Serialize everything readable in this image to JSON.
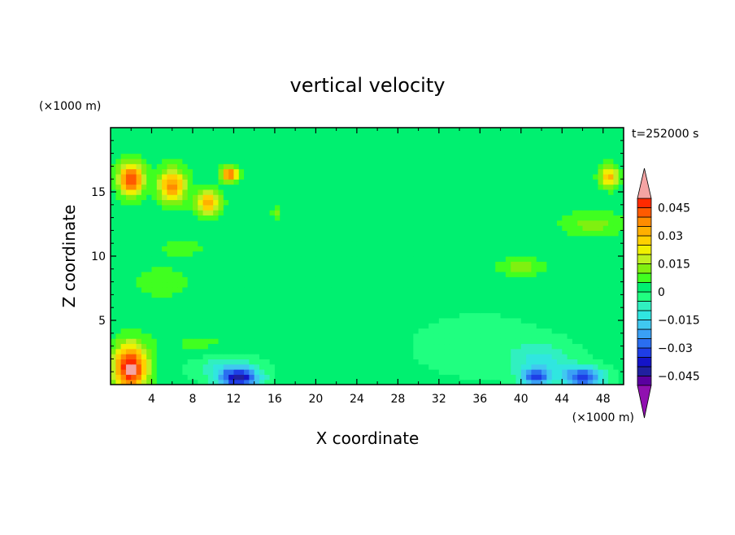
{
  "chart_data": {
    "type": "heatmap",
    "title": "vertical velocity",
    "time_label": "t=252000 s",
    "xlabel": "X coordinate",
    "ylabel": "Z coordinate",
    "x_unit": "(×1000 m)",
    "y_unit": "(×1000 m)",
    "xlim": [
      0,
      50
    ],
    "ylim": [
      0,
      20
    ],
    "x_ticks": [
      4,
      8,
      12,
      16,
      20,
      24,
      28,
      32,
      36,
      40,
      44,
      48
    ],
    "y_ticks": [
      5,
      10,
      15
    ],
    "colorbar": {
      "levels": [
        -0.05,
        -0.045,
        -0.04,
        -0.035,
        -0.03,
        -0.025,
        -0.02,
        -0.015,
        -0.01,
        -0.005,
        0,
        0.005,
        0.01,
        0.015,
        0.02,
        0.025,
        0.03,
        0.035,
        0.04,
        0.045,
        0.05
      ],
      "colors": [
        "#5a00a0",
        "#2020a0",
        "#1414c8",
        "#1e3ee6",
        "#2a6ef0",
        "#3aa0f5",
        "#40c8f0",
        "#30e6e0",
        "#30f0c0",
        "#20ff80",
        "#00f070",
        "#40ff20",
        "#80f010",
        "#c0f020",
        "#f0f000",
        "#ffd000",
        "#ffb000",
        "#ff8c00",
        "#ff5a00",
        "#ff2a00",
        "#e01010"
      ],
      "under_color": "#9010b0",
      "over_color": "#f4a4a4",
      "tick_values": [
        0.045,
        0.03,
        0.015,
        0,
        -0.015,
        -0.03,
        -0.045
      ],
      "tick_labels": [
        "0.045",
        "0.03",
        "0.015",
        "0",
        "−0.015",
        "−0.03",
        "−0.045"
      ]
    },
    "features": [
      {
        "x": 1.9,
        "z": 1.3,
        "rx": 1.6,
        "rz": 1.8,
        "value": 0.052
      },
      {
        "x": 12.5,
        "z": 0.5,
        "rx": 2.0,
        "rz": 0.8,
        "value": -0.04
      },
      {
        "x": 41.5,
        "z": 0.6,
        "rx": 1.5,
        "rz": 0.7,
        "value": -0.03
      },
      {
        "x": 46.0,
        "z": 0.6,
        "rx": 2.0,
        "rz": 0.8,
        "value": -0.035
      },
      {
        "x": 2.0,
        "z": 16.0,
        "rx": 1.2,
        "rz": 1.2,
        "value": 0.045
      },
      {
        "x": 6.0,
        "z": 15.5,
        "rx": 1.3,
        "rz": 1.3,
        "value": 0.035
      },
      {
        "x": 9.5,
        "z": 14.2,
        "rx": 1.2,
        "rz": 0.9,
        "value": 0.03
      },
      {
        "x": 11.6,
        "z": 16.4,
        "rx": 0.8,
        "rz": 0.5,
        "value": 0.045
      },
      {
        "x": 48.6,
        "z": 16.2,
        "rx": 0.9,
        "rz": 0.8,
        "value": 0.03
      },
      {
        "x": 47.0,
        "z": 12.5,
        "rx": 3.0,
        "rz": 1.0,
        "value": 0.01
      },
      {
        "x": 40.0,
        "z": 9.2,
        "rx": 2.3,
        "rz": 0.7,
        "value": 0.01
      },
      {
        "x": 7.0,
        "z": 10.7,
        "rx": 2.0,
        "rz": 0.6,
        "value": 0.006
      },
      {
        "x": 16.1,
        "z": 13.4,
        "rx": 0.4,
        "rz": 0.5,
        "value": 0.012
      },
      {
        "x": 5.0,
        "z": 8.0,
        "rx": 5.0,
        "rz": 2.0,
        "value": 0.004
      },
      {
        "x": 9.0,
        "z": 3.0,
        "rx": 5.0,
        "rz": 1.5,
        "value": 0.004
      },
      {
        "x": 42.0,
        "z": 2.0,
        "rx": 3.0,
        "rz": 1.2,
        "value": -0.012
      },
      {
        "x": 11.0,
        "z": 1.5,
        "rx": 3.5,
        "rz": 1.0,
        "value": -0.012
      },
      {
        "x": 25.0,
        "z": 18.5,
        "rx": 25.0,
        "rz": 1.5,
        "value": 0.003
      },
      {
        "x": 36.0,
        "z": 3.0,
        "rx": 8.0,
        "rz": 3.0,
        "value": -0.004
      }
    ]
  }
}
